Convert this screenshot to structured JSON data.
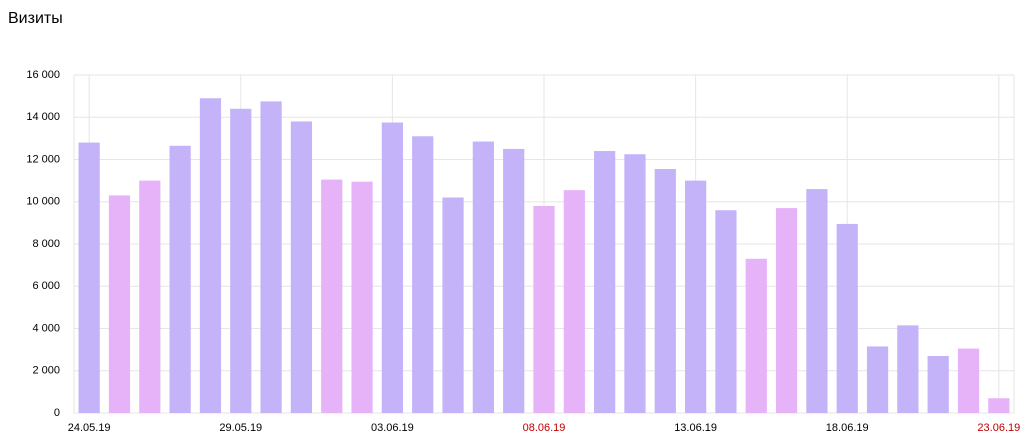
{
  "chart_data": {
    "type": "bar",
    "title": "Визиты",
    "categories": [
      "24.05.19",
      null,
      null,
      null,
      null,
      "29.05.19",
      null,
      null,
      null,
      null,
      "03.06.19",
      null,
      null,
      null,
      null,
      "08.06.19",
      null,
      null,
      null,
      null,
      "13.06.19",
      null,
      null,
      null,
      null,
      "18.06.19",
      null,
      null,
      null,
      null,
      "23.06.19"
    ],
    "values": [
      12800,
      10300,
      11000,
      12650,
      14900,
      14400,
      14750,
      13800,
      11050,
      10950,
      13750,
      13100,
      10200,
      12850,
      12500,
      9800,
      10550,
      12400,
      12250,
      11550,
      11000,
      9600,
      7300,
      9700,
      10600,
      8950,
      3150,
      4150,
      2700,
      3050,
      700
    ],
    "colors": [
      "#c4b3f8",
      "#e7b3f8",
      "#e7b3f8",
      "#c4b3f8",
      "#c4b3f8",
      "#c4b3f8",
      "#c4b3f8",
      "#c4b3f8",
      "#e7b3f8",
      "#e7b3f8",
      "#c4b3f8",
      "#c4b3f8",
      "#c4b3f8",
      "#c4b3f8",
      "#c4b3f8",
      "#e7b3f8",
      "#e7b3f8",
      "#c4b3f8",
      "#c4b3f8",
      "#c4b3f8",
      "#c4b3f8",
      "#c4b3f8",
      "#e7b3f8",
      "#e7b3f8",
      "#c4b3f8",
      "#c4b3f8",
      "#c4b3f8",
      "#c4b3f8",
      "#c4b3f8",
      "#e7b3f8",
      "#e7b3f8"
    ],
    "x_label_colors": [
      "#000000",
      null,
      null,
      null,
      null,
      "#000000",
      null,
      null,
      null,
      null,
      "#000000",
      null,
      null,
      null,
      null,
      "#c00000",
      null,
      null,
      null,
      null,
      "#000000",
      null,
      null,
      null,
      null,
      "#000000",
      null,
      null,
      null,
      null,
      "#c00000"
    ],
    "ylim": [
      0,
      16000
    ],
    "yticks": [
      0,
      {
        "value": 2000,
        "label": "2 000"
      },
      {
        "value": 4000,
        "label": "4 000"
      },
      {
        "value": 6000,
        "label": "6 000"
      },
      {
        "value": 8000,
        "label": "8 000"
      },
      {
        "value": 10000,
        "label": "10 000"
      },
      {
        "value": 12000,
        "label": "12 000"
      },
      {
        "value": 14000,
        "label": "14 000"
      },
      {
        "value": 16000,
        "label": "16 000"
      }
    ],
    "grid": true
  }
}
